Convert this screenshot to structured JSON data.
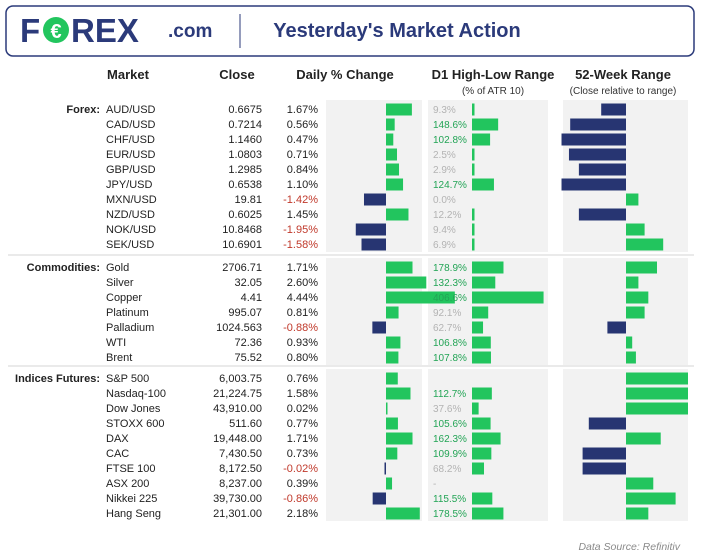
{
  "header": {
    "logo_part1": "F",
    "logo_part2": "REX",
    "logo_domain": ".com",
    "title": "Yesterday's Market Action"
  },
  "columns": {
    "market": "Market",
    "close": "Close",
    "daily": "Daily % Change",
    "hl": "D1 High-Low Range",
    "hl_sub": "(% of ATR 10)",
    "wk": "52-Week Range",
    "wk_sub": "(Close relative to range)"
  },
  "colors": {
    "positive": "#22c55e",
    "negative": "#273572",
    "neg_text": "#c0392b",
    "hl_text": "#22a455",
    "hl_text_dim": "#b3b3b3",
    "panel_bg": "#f2f2f2",
    "frame": "#2b3a7a"
  },
  "footer": "Data Source: Refinitiv",
  "chart_data": {
    "type": "table",
    "groups": [
      {
        "name": "Forex:",
        "rows": [
          {
            "market": "AUD/USD",
            "close": "0.6675",
            "daily": 1.67,
            "daily_label": "1.67%",
            "hl": 9.3,
            "hl_label": "9.3%",
            "wk": -0.2
          },
          {
            "market": "CAD/USD",
            "close": "0.7214",
            "daily": 0.56,
            "daily_label": "0.56%",
            "hl": 148.6,
            "hl_label": "148.6%",
            "wk": -0.45
          },
          {
            "market": "CHF/USD",
            "close": "1.1460",
            "daily": 0.47,
            "daily_label": "0.47%",
            "hl": 102.8,
            "hl_label": "102.8%",
            "wk": -0.52
          },
          {
            "market": "EUR/USD",
            "close": "1.0803",
            "daily": 0.71,
            "daily_label": "0.71%",
            "hl": 2.5,
            "hl_label": "2.5%",
            "wk": -0.46
          },
          {
            "market": "GBP/USD",
            "close": "1.2985",
            "daily": 0.84,
            "daily_label": "0.84%",
            "hl": 2.9,
            "hl_label": "2.9%",
            "wk": -0.38
          },
          {
            "market": "JPY/USD",
            "close": "0.6538",
            "daily": 1.1,
            "daily_label": "1.10%",
            "hl": 124.7,
            "hl_label": "124.7%",
            "wk": -0.52
          },
          {
            "market": "MXN/USD",
            "close": "19.81",
            "daily": -1.42,
            "daily_label": "-1.42%",
            "hl": 0.0,
            "hl_label": "0.0%",
            "wk": 0.1
          },
          {
            "market": "NZD/USD",
            "close": "0.6025",
            "daily": 1.45,
            "daily_label": "1.45%",
            "hl": 12.2,
            "hl_label": "12.2%",
            "wk": -0.38
          },
          {
            "market": "NOK/USD",
            "close": "10.8468",
            "daily": -1.95,
            "daily_label": "-1.95%",
            "hl": 9.4,
            "hl_label": "9.4%",
            "wk": 0.15
          },
          {
            "market": "SEK/USD",
            "close": "10.6901",
            "daily": -1.58,
            "daily_label": "-1.58%",
            "hl": 6.9,
            "hl_label": "6.9%",
            "wk": 0.3
          }
        ]
      },
      {
        "name": "Commodities:",
        "rows": [
          {
            "market": "Gold",
            "close": "2706.71",
            "daily": 1.71,
            "daily_label": "1.71%",
            "hl": 178.9,
            "hl_label": "178.9%",
            "wk": 0.25
          },
          {
            "market": "Silver",
            "close": "32.05",
            "daily": 2.6,
            "daily_label": "2.60%",
            "hl": 132.3,
            "hl_label": "132.3%",
            "wk": 0.1
          },
          {
            "market": "Copper",
            "close": "4.41",
            "daily": 4.44,
            "daily_label": "4.44%",
            "hl": 406.6,
            "hl_label": "406.6%",
            "wk": 0.18
          },
          {
            "market": "Platinum",
            "close": "995.07",
            "daily": 0.81,
            "daily_label": "0.81%",
            "hl": 92.1,
            "hl_label": "92.1%",
            "wk": 0.15
          },
          {
            "market": "Palladium",
            "close": "1024.563",
            "daily": -0.88,
            "daily_label": "-0.88%",
            "hl": 62.7,
            "hl_label": "62.7%",
            "wk": -0.15
          },
          {
            "market": "WTI",
            "close": "72.36",
            "daily": 0.93,
            "daily_label": "0.93%",
            "hl": 106.8,
            "hl_label": "106.8%",
            "wk": 0.05
          },
          {
            "market": "Brent",
            "close": "75.52",
            "daily": 0.8,
            "daily_label": "0.80%",
            "hl": 107.8,
            "hl_label": "107.8%",
            "wk": 0.08
          }
        ]
      },
      {
        "name": "Indices Futures:",
        "rows": [
          {
            "market": "S&P 500",
            "close": "6,003.75",
            "daily": 0.76,
            "daily_label": "0.76%",
            "hl": null,
            "hl_label": "",
            "wk": 0.5
          },
          {
            "market": "Nasdaq-100",
            "close": "21,224.75",
            "daily": 1.58,
            "daily_label": "1.58%",
            "hl": 112.7,
            "hl_label": "112.7%",
            "wk": 0.5
          },
          {
            "market": "Dow Jones",
            "close": "43,910.00",
            "daily": 0.02,
            "daily_label": "0.02%",
            "hl": 37.6,
            "hl_label": "37.6%",
            "wk": 0.5
          },
          {
            "market": "STOXX 600",
            "close": "511.60",
            "daily": 0.77,
            "daily_label": "0.77%",
            "hl": 105.6,
            "hl_label": "105.6%",
            "wk": -0.3
          },
          {
            "market": "DAX",
            "close": "19,448.00",
            "daily": 1.71,
            "daily_label": "1.71%",
            "hl": 162.3,
            "hl_label": "162.3%",
            "wk": 0.28
          },
          {
            "market": "CAC",
            "close": "7,430.50",
            "daily": 0.73,
            "daily_label": "0.73%",
            "hl": 109.9,
            "hl_label": "109.9%",
            "wk": -0.35
          },
          {
            "market": "FTSE 100",
            "close": "8,172.50",
            "daily": -0.02,
            "daily_label": "-0.02%",
            "hl": 68.2,
            "hl_label": "68.2%",
            "wk": -0.35
          },
          {
            "market": "ASX 200",
            "close": "8,237.00",
            "daily": 0.39,
            "daily_label": "0.39%",
            "hl": 0.0,
            "hl_label": "-",
            "wk": 0.22
          },
          {
            "market": "Nikkei 225",
            "close": "39,730.00",
            "daily": -0.86,
            "daily_label": "-0.86%",
            "hl": 115.5,
            "hl_label": "115.5%",
            "wk": 0.4
          },
          {
            "market": "Hang Seng",
            "close": "21,301.00",
            "daily": 2.18,
            "daily_label": "2.18%",
            "hl": 178.5,
            "hl_label": "178.5%",
            "wk": 0.18
          }
        ]
      }
    ]
  }
}
